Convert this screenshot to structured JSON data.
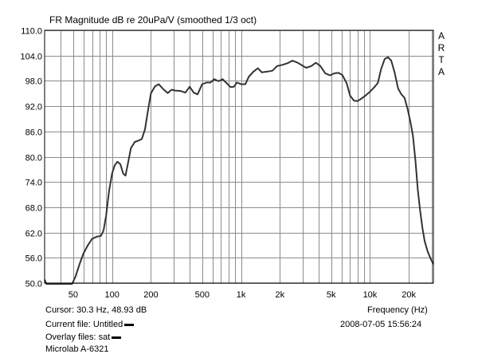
{
  "chart_data": {
    "type": "line",
    "title": "FR Magnitude dB re 20uPa/V (smoothed 1/3 oct)",
    "xlabel": "Frequency (Hz)",
    "ylabel": "",
    "x_scale": "log",
    "xlim": [
      30,
      31000
    ],
    "ylim": [
      50,
      110
    ],
    "y_ticks": [
      "110.0",
      "104.0",
      "98.0",
      "92.0",
      "86.0",
      "80.0",
      "74.0",
      "68.0",
      "62.0",
      "56.0",
      "50.0"
    ],
    "x_ticks": [
      {
        "value": 50,
        "label": "50"
      },
      {
        "value": 100,
        "label": "100"
      },
      {
        "value": 200,
        "label": "200"
      },
      {
        "value": 500,
        "label": "500"
      },
      {
        "value": 1000,
        "label": "1k"
      },
      {
        "value": 2000,
        "label": "2k"
      },
      {
        "value": 5000,
        "label": "5k"
      },
      {
        "value": 10000,
        "label": "10k"
      },
      {
        "value": 20000,
        "label": "20k"
      }
    ],
    "grid": true,
    "color": "#333333",
    "series": [
      {
        "name": "",
        "points": [
          [
            30,
            50.8
          ],
          [
            31,
            49.8
          ],
          [
            49,
            49.8
          ],
          [
            52,
            51.5
          ],
          [
            56,
            54.5
          ],
          [
            60,
            57.0
          ],
          [
            65,
            59.0
          ],
          [
            70,
            60.5
          ],
          [
            76,
            61.0
          ],
          [
            82,
            61.2
          ],
          [
            86,
            62.5
          ],
          [
            90,
            66.0
          ],
          [
            95,
            72.0
          ],
          [
            100,
            76.0
          ],
          [
            105,
            78.0
          ],
          [
            110,
            78.8
          ],
          [
            116,
            78.2
          ],
          [
            122,
            76.0
          ],
          [
            127,
            75.5
          ],
          [
            132,
            78.0
          ],
          [
            140,
            82.0
          ],
          [
            150,
            83.5
          ],
          [
            160,
            83.8
          ],
          [
            170,
            84.2
          ],
          [
            180,
            86.5
          ],
          [
            190,
            91.0
          ],
          [
            200,
            95.0
          ],
          [
            215,
            96.7
          ],
          [
            230,
            97.2
          ],
          [
            250,
            96.0
          ],
          [
            270,
            95.1
          ],
          [
            290,
            95.9
          ],
          [
            310,
            95.7
          ],
          [
            340,
            95.6
          ],
          [
            370,
            95.2
          ],
          [
            400,
            96.6
          ],
          [
            430,
            95.2
          ],
          [
            460,
            94.8
          ],
          [
            500,
            97.2
          ],
          [
            540,
            97.6
          ],
          [
            580,
            97.6
          ],
          [
            620,
            98.4
          ],
          [
            670,
            97.9
          ],
          [
            720,
            98.4
          ],
          [
            770,
            97.5
          ],
          [
            830,
            96.5
          ],
          [
            880,
            96.6
          ],
          [
            930,
            97.6
          ],
          [
            1000,
            97.2
          ],
          [
            1080,
            97.2
          ],
          [
            1150,
            99.0
          ],
          [
            1250,
            100.2
          ],
          [
            1350,
            101.0
          ],
          [
            1450,
            100.0
          ],
          [
            1600,
            100.2
          ],
          [
            1750,
            100.4
          ],
          [
            1900,
            101.5
          ],
          [
            2100,
            101.8
          ],
          [
            2300,
            102.2
          ],
          [
            2500,
            102.8
          ],
          [
            2750,
            102.3
          ],
          [
            3000,
            101.6
          ],
          [
            3200,
            101.1
          ],
          [
            3500,
            101.5
          ],
          [
            3800,
            102.3
          ],
          [
            4100,
            101.6
          ],
          [
            4500,
            99.8
          ],
          [
            4900,
            99.3
          ],
          [
            5300,
            99.8
          ],
          [
            5700,
            99.9
          ],
          [
            6100,
            99.4
          ],
          [
            6600,
            97.4
          ],
          [
            7000,
            94.5
          ],
          [
            7500,
            93.3
          ],
          [
            8000,
            93.2
          ],
          [
            8600,
            93.8
          ],
          [
            9300,
            94.6
          ],
          [
            10000,
            95.4
          ],
          [
            10800,
            96.5
          ],
          [
            11500,
            97.5
          ],
          [
            12200,
            100.8
          ],
          [
            13000,
            103.2
          ],
          [
            13800,
            103.6
          ],
          [
            14600,
            102.8
          ],
          [
            15500,
            100.0
          ],
          [
            16500,
            96.2
          ],
          [
            17500,
            94.8
          ],
          [
            18500,
            94.0
          ],
          [
            19500,
            91.5
          ],
          [
            20500,
            88.5
          ],
          [
            21500,
            85.0
          ],
          [
            22500,
            79.0
          ],
          [
            23500,
            72.0
          ],
          [
            24500,
            67.0
          ],
          [
            25500,
            63.0
          ],
          [
            26500,
            60.0
          ],
          [
            28000,
            57.5
          ],
          [
            29500,
            55.8
          ],
          [
            31000,
            54.5
          ]
        ]
      }
    ]
  },
  "labels": {
    "arta": [
      "A",
      "R",
      "T",
      "A"
    ],
    "cursor": "Cursor: 30.3 Hz, 48.93 dB",
    "current_file": "Current file: Untitled",
    "overlay_files": "Overlay files: sat",
    "device": "Microlab A-6321",
    "timestamp": "2008-07-05   15:56:24"
  }
}
